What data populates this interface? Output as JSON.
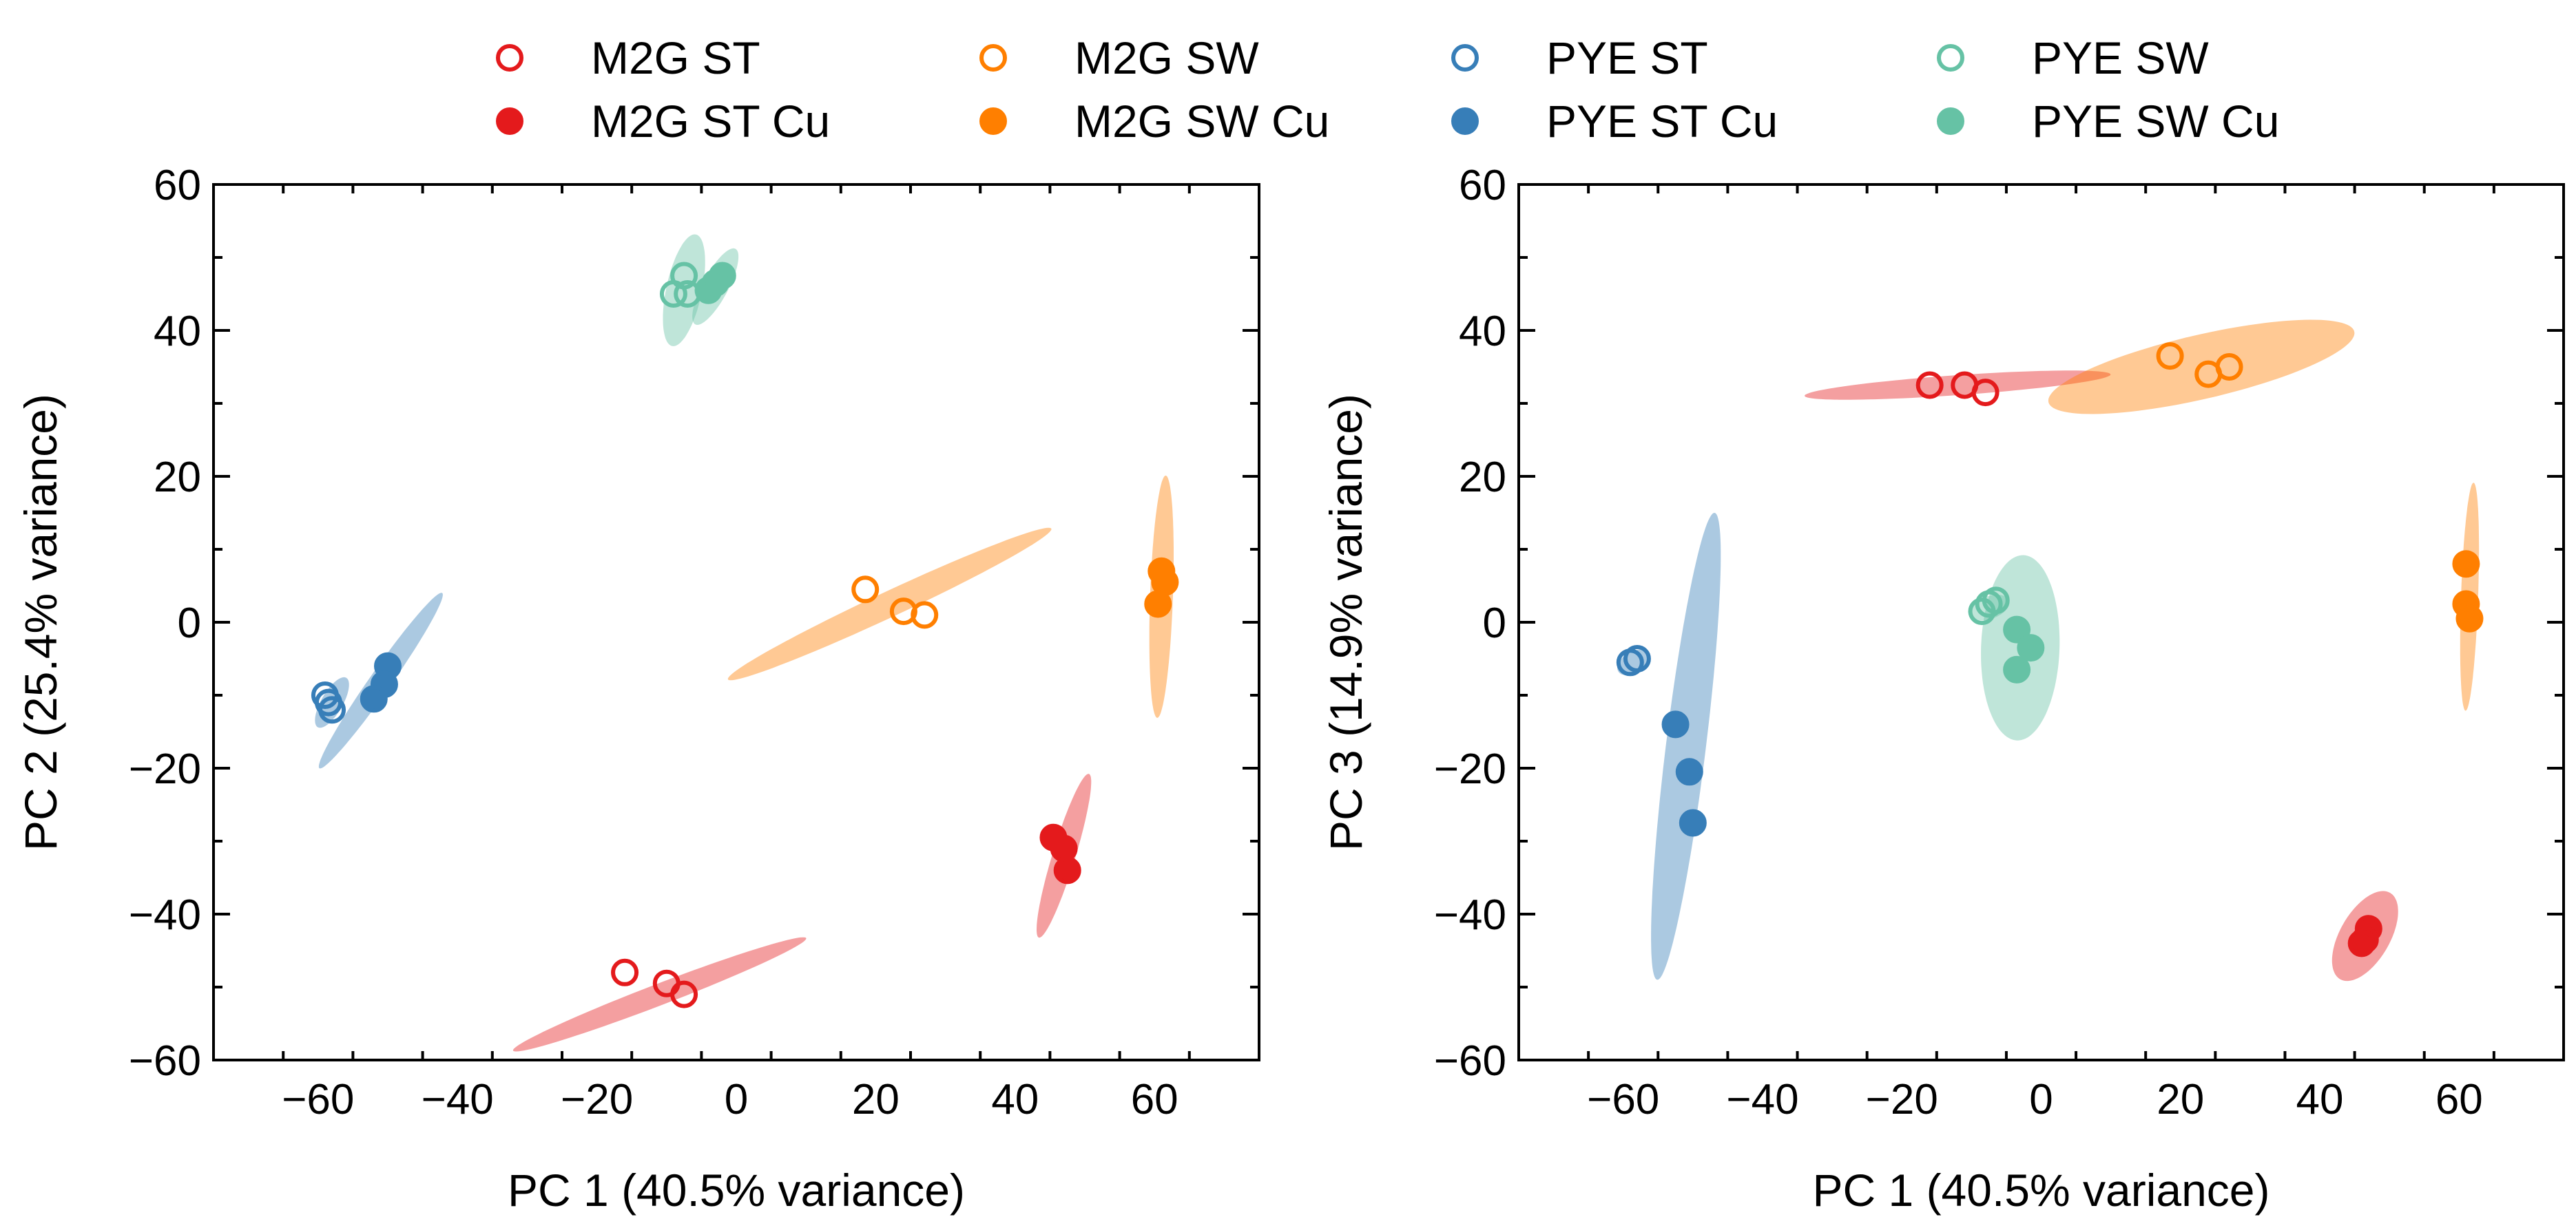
{
  "colors": {
    "M2G ST": "#e41a1c",
    "M2G SW": "#ff7f00",
    "PYE ST": "#377eb8",
    "PYE SW": "#66c2a5"
  },
  "legend": [
    {
      "label": "M2G ST",
      "group": "M2G ST",
      "filled": false
    },
    {
      "label": "M2G SW",
      "group": "M2G SW",
      "filled": false
    },
    {
      "label": "PYE ST",
      "group": "PYE ST",
      "filled": false
    },
    {
      "label": "PYE SW",
      "group": "PYE SW",
      "filled": false
    },
    {
      "label": "M2G ST Cu",
      "group": "M2G ST",
      "filled": true
    },
    {
      "label": "M2G SW Cu",
      "group": "M2G SW",
      "filled": true
    },
    {
      "label": "PYE ST Cu",
      "group": "PYE ST",
      "filled": true
    },
    {
      "label": "PYE SW Cu",
      "group": "PYE SW",
      "filled": true
    }
  ],
  "chart_data": [
    {
      "type": "scatter",
      "title": "",
      "xlabel": "PC 1 (40.5% variance)",
      "ylabel": "PC 2 (25.4% variance)",
      "xlim": [
        -75,
        75
      ],
      "ylim": [
        -60,
        60
      ],
      "xticks": [
        -60,
        -40,
        -20,
        0,
        20,
        40,
        60
      ],
      "yticks": [
        -60,
        -40,
        -20,
        0,
        20,
        40,
        60
      ],
      "series": [
        {
          "name": "M2G ST",
          "group": "M2G ST",
          "filled": false,
          "points": [
            [
              -16,
              -48
            ],
            [
              -10,
              -49.5
            ],
            [
              -7.5,
              -51
            ]
          ]
        },
        {
          "name": "M2G ST Cu",
          "group": "M2G ST",
          "filled": true,
          "points": [
            [
              45.5,
              -29.5
            ],
            [
              47,
              -31
            ],
            [
              47.5,
              -34
            ]
          ]
        },
        {
          "name": "M2G SW",
          "group": "M2G SW",
          "filled": false,
          "points": [
            [
              18.5,
              4.5
            ],
            [
              24,
              1.5
            ],
            [
              27,
              1
            ]
          ]
        },
        {
          "name": "M2G SW Cu",
          "group": "M2G SW",
          "filled": true,
          "points": [
            [
              61,
              7
            ],
            [
              61.5,
              5.5
            ],
            [
              60.5,
              2.5
            ]
          ]
        },
        {
          "name": "PYE ST",
          "group": "PYE ST",
          "filled": false,
          "points": [
            [
              -59,
              -10
            ],
            [
              -58.5,
              -11
            ],
            [
              -58,
              -12
            ]
          ]
        },
        {
          "name": "PYE ST Cu",
          "group": "PYE ST",
          "filled": true,
          "points": [
            [
              -50,
              -6
            ],
            [
              -50.5,
              -8.5
            ],
            [
              -52,
              -10.5
            ]
          ]
        },
        {
          "name": "PYE SW",
          "group": "PYE SW",
          "filled": false,
          "points": [
            [
              -9,
              45
            ],
            [
              -7.5,
              47.5
            ],
            [
              -7,
              45
            ]
          ]
        },
        {
          "name": "PYE SW Cu",
          "group": "PYE SW",
          "filled": true,
          "points": [
            [
              -4,
              45.5
            ],
            [
              -2,
              47.5
            ],
            [
              -3,
              46.5
            ]
          ]
        }
      ],
      "ellipses": [
        {
          "group": "M2G ST",
          "cx": -11,
          "cy": -51,
          "rx": 22,
          "ry": 1.5,
          "angle_deg": -21
        },
        {
          "group": "M2G ST Cu",
          "cx": 47,
          "cy": -32,
          "rx": 12,
          "ry": 1.6,
          "angle_deg": -73
        },
        {
          "group": "M2G SW",
          "cx": 22,
          "cy": 2.5,
          "rx": 25,
          "ry": 1.8,
          "angle_deg": -25
        },
        {
          "group": "M2G SW Cu",
          "cx": 61,
          "cy": 3.5,
          "rx": 17,
          "ry": 1.6,
          "angle_deg": -88
        },
        {
          "group": "PYE ST",
          "cx": -58,
          "cy": -11,
          "rx": 4,
          "ry": 1.5,
          "angle_deg": -60
        },
        {
          "group": "PYE ST Cu",
          "cx": -51,
          "cy": -8,
          "rx": 15,
          "ry": 1.5,
          "angle_deg": -55
        },
        {
          "group": "PYE SW",
          "cx": -7.5,
          "cy": 45.5,
          "rx": 8,
          "ry": 2.5,
          "angle_deg": -78
        },
        {
          "group": "PYE SW Cu",
          "cx": -3,
          "cy": 46,
          "rx": 6,
          "ry": 1.8,
          "angle_deg": -62
        }
      ]
    },
    {
      "type": "scatter",
      "title": "",
      "xlabel": "PC 1 (40.5% variance)",
      "ylabel": "PC 3 (14.9% variance)",
      "xlim": [
        -75,
        75
      ],
      "ylim": [
        -60,
        60
      ],
      "xticks": [
        -60,
        -40,
        -20,
        0,
        20,
        40,
        60
      ],
      "yticks": [
        -60,
        -40,
        -20,
        0,
        20,
        40,
        60
      ],
      "series": [
        {
          "name": "M2G ST",
          "group": "M2G ST",
          "filled": false,
          "points": [
            [
              -16,
              32.5
            ],
            [
              -11,
              32.5
            ],
            [
              -8,
              31.5
            ]
          ]
        },
        {
          "name": "M2G ST Cu",
          "group": "M2G ST",
          "filled": true,
          "points": [
            [
              47,
              -42
            ],
            [
              46.5,
              -43.5
            ],
            [
              46,
              -44
            ]
          ]
        },
        {
          "name": "M2G SW",
          "group": "M2G SW",
          "filled": false,
          "points": [
            [
              18.5,
              36.5
            ],
            [
              24,
              34
            ],
            [
              27,
              35
            ]
          ]
        },
        {
          "name": "M2G SW Cu",
          "group": "M2G SW",
          "filled": true,
          "points": [
            [
              61,
              8
            ],
            [
              61,
              2.5
            ],
            [
              61.5,
              0.5
            ]
          ]
        },
        {
          "name": "PYE ST",
          "group": "PYE ST",
          "filled": false,
          "points": [
            [
              -58,
              -5
            ],
            [
              -59,
              -5.5
            ]
          ]
        },
        {
          "name": "PYE ST Cu",
          "group": "PYE ST",
          "filled": true,
          "points": [
            [
              -52.5,
              -14
            ],
            [
              -50.5,
              -20.5
            ],
            [
              -50,
              -27.5
            ]
          ]
        },
        {
          "name": "PYE SW",
          "group": "PYE SW",
          "filled": false,
          "points": [
            [
              -8.5,
              1.5
            ],
            [
              -7.5,
              2.5
            ],
            [
              -6.5,
              3
            ]
          ]
        },
        {
          "name": "PYE SW Cu",
          "group": "PYE SW",
          "filled": true,
          "points": [
            [
              -3.5,
              -1
            ],
            [
              -1.5,
              -3.5
            ],
            [
              -3.5,
              -6.5
            ]
          ]
        }
      ],
      "ellipses": [
        {
          "group": "M2G ST",
          "cx": -12,
          "cy": 32.5,
          "rx": 21.5,
          "ry": 1.4,
          "angle_deg": -4
        },
        {
          "group": "M2G ST Cu",
          "cx": 46.5,
          "cy": -43,
          "rx": 7,
          "ry": 3.5,
          "angle_deg": -60
        },
        {
          "group": "M2G SW",
          "cx": 23,
          "cy": 35,
          "rx": 22,
          "ry": 4.5,
          "angle_deg": -13
        },
        {
          "group": "M2G SW Cu",
          "cx": 61.5,
          "cy": 3.5,
          "rx": 16,
          "ry": 1.2,
          "angle_deg": -88
        },
        {
          "group": "PYE ST",
          "cx": -58.5,
          "cy": -5.5,
          "rx": 2.5,
          "ry": 1.5,
          "angle_deg": -30
        },
        {
          "group": "PYE ST Cu",
          "cx": -51,
          "cy": -17,
          "rx": 33,
          "ry": 2.8,
          "angle_deg": -83
        },
        {
          "group": "PYE SW",
          "cx": -7.5,
          "cy": 2,
          "rx": 3,
          "ry": 1.6,
          "angle_deg": -20
        },
        {
          "group": "PYE SW Cu",
          "cx": -3,
          "cy": -3.5,
          "rx": 13,
          "ry": 5.5,
          "angle_deg": -88
        }
      ]
    }
  ]
}
